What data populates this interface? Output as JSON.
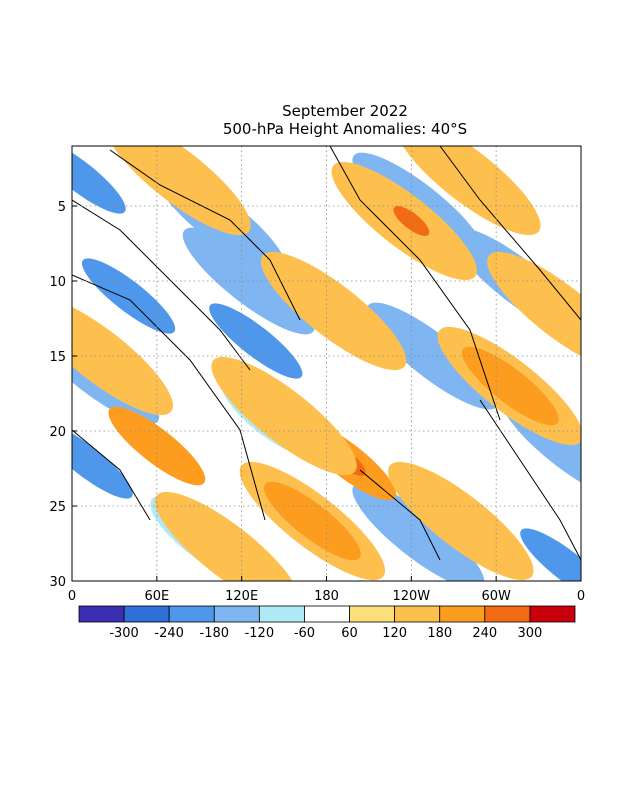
{
  "chart_data": {
    "type": "heatmap",
    "title": "September 2022",
    "subtitle": "500-hPa Height Anomalies: 40°S",
    "x_ticks": [
      "0",
      "60E",
      "120E",
      "180",
      "120W",
      "60W",
      "0"
    ],
    "y_ticks": [
      "5",
      "10",
      "15",
      "20",
      "25",
      "30"
    ],
    "y_range": [
      1,
      30
    ],
    "y_inverted": true,
    "grid": true,
    "colorbar": {
      "labels": [
        "-300",
        "-240",
        "-180",
        "-120",
        "-60",
        "60",
        "120",
        "180",
        "240",
        "300"
      ],
      "colors": [
        "#3a2fb3",
        "#2f6fd8",
        "#4f97ea",
        "#7fb6f1",
        "#b0eaf6",
        "#ffffff",
        "#fbe07a",
        "#fdc04f",
        "#fd9d1f",
        "#f26a14",
        "#c8000c"
      ]
    },
    "palette": {
      "neg240": "#2f6fd8",
      "neg180": "#4f97ea",
      "neg120": "#7fb6f1",
      "neg60": "#b0eaf6",
      "pos60": "#fbe07a",
      "pos120": "#fdc04f",
      "pos180": "#fd9d1f",
      "pos240": "#f26a14"
    },
    "anomaly_bands": [
      {
        "level": "neg180",
        "lon": 5,
        "day": 3
      },
      {
        "level": "neg120",
        "lon": 125,
        "day": 10
      },
      {
        "level": "neg180",
        "lon": 130,
        "day": 14
      },
      {
        "level": "neg120",
        "lon": 105,
        "day": 6
      },
      {
        "level": "neg180",
        "lon": 40,
        "day": 11
      },
      {
        "level": "neg120",
        "lon": 15,
        "day": 16
      },
      {
        "level": "neg180",
        "lon": 10,
        "day": 22
      },
      {
        "level": "neg120",
        "lon": 245,
        "day": 5
      },
      {
        "level": "neg120",
        "lon": 255,
        "day": 15
      },
      {
        "level": "neg120",
        "lon": 315,
        "day": 10
      },
      {
        "level": "neg120",
        "lon": 350,
        "day": 21
      },
      {
        "level": "neg120",
        "lon": 245,
        "day": 27
      },
      {
        "level": "neg180",
        "lon": 350,
        "day": 29
      },
      {
        "level": "neg60",
        "lon": 140,
        "day": 19
      },
      {
        "level": "neg60",
        "lon": 90,
        "day": 27
      },
      {
        "level": "pos120",
        "lon": 20,
        "day": 15
      },
      {
        "level": "pos180",
        "lon": 60,
        "day": 21
      },
      {
        "level": "pos120",
        "lon": 75,
        "day": 3
      },
      {
        "level": "pos120",
        "lon": 235,
        "day": 6
      },
      {
        "level": "pos240",
        "lon": 240,
        "day": 6
      },
      {
        "level": "pos120",
        "lon": 185,
        "day": 12
      },
      {
        "level": "pos180",
        "lon": 195,
        "day": 22
      },
      {
        "level": "pos240",
        "lon": 195,
        "day": 22
      },
      {
        "level": "pos120",
        "lon": 310,
        "day": 17
      },
      {
        "level": "pos180",
        "lon": 310,
        "day": 17
      },
      {
        "level": "pos120",
        "lon": 280,
        "day": 3
      },
      {
        "level": "pos120",
        "lon": 170,
        "day": 26
      },
      {
        "level": "pos180",
        "lon": 170,
        "day": 26
      },
      {
        "level": "pos120",
        "lon": 110,
        "day": 28
      },
      {
        "level": "pos120",
        "lon": 150,
        "day": 19
      },
      {
        "level": "pos120",
        "lon": 275,
        "day": 26
      },
      {
        "level": "pos120",
        "lon": 345,
        "day": 12
      }
    ]
  }
}
